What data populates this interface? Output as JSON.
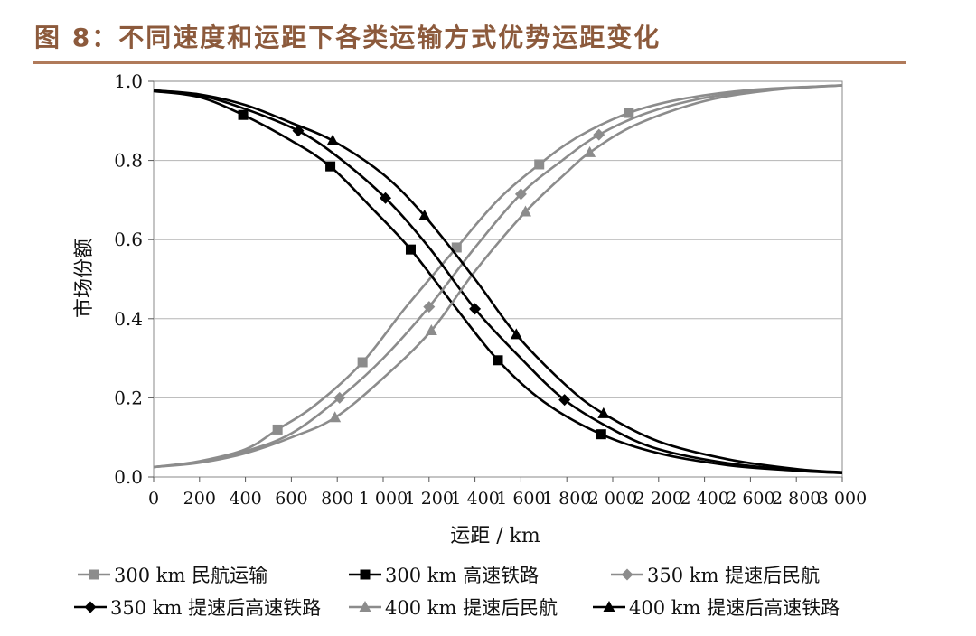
{
  "figure": {
    "title": "图 8：不同速度和运距下各类运输方式优势运距变化"
  },
  "chart_data": {
    "type": "line",
    "xlabel": "运距 / km",
    "ylabel": "市场份额",
    "xlim": [
      0,
      3000
    ],
    "ylim": [
      0,
      1.0
    ],
    "x_ticks": [
      "0",
      "200",
      "400",
      "600",
      "800",
      "1 000",
      "1 200",
      "1 400",
      "1 600",
      "1 800",
      "2 000",
      "2 200",
      "2 400",
      "2 600",
      "2 800",
      "3 000"
    ],
    "y_ticks": [
      "0.0",
      "0.2",
      "0.4",
      "0.6",
      "0.8",
      "1.0"
    ],
    "grid": "horizontal",
    "legend_position": "bottom",
    "series": [
      {
        "name": "300 km 民航运输",
        "color": "#8c8c8c",
        "marker": "square",
        "points": [
          [
            0,
            0.025
          ],
          [
            200,
            0.04
          ],
          [
            400,
            0.07
          ],
          [
            540,
            0.12
          ],
          [
            700,
            0.18
          ],
          [
            910,
            0.29
          ],
          [
            1100,
            0.43
          ],
          [
            1320,
            0.58
          ],
          [
            1500,
            0.7
          ],
          [
            1680,
            0.79
          ],
          [
            1850,
            0.86
          ],
          [
            2070,
            0.92
          ],
          [
            2300,
            0.955
          ],
          [
            2600,
            0.978
          ],
          [
            3000,
            0.99
          ]
        ],
        "marker_points": [
          [
            540,
            0.12
          ],
          [
            910,
            0.29
          ],
          [
            1320,
            0.58
          ],
          [
            1680,
            0.79
          ],
          [
            2070,
            0.92
          ]
        ]
      },
      {
        "name": "300 km 高速铁路",
        "color": "#000000",
        "marker": "square",
        "points": [
          [
            0,
            0.975
          ],
          [
            200,
            0.96
          ],
          [
            390,
            0.915
          ],
          [
            600,
            0.85
          ],
          [
            770,
            0.785
          ],
          [
            950,
            0.68
          ],
          [
            1120,
            0.575
          ],
          [
            1300,
            0.44
          ],
          [
            1500,
            0.295
          ],
          [
            1700,
            0.19
          ],
          [
            1950,
            0.108
          ],
          [
            2200,
            0.06
          ],
          [
            2500,
            0.03
          ],
          [
            2800,
            0.016
          ],
          [
            3000,
            0.01
          ]
        ],
        "marker_points": [
          [
            390,
            0.915
          ],
          [
            770,
            0.785
          ],
          [
            1120,
            0.575
          ],
          [
            1500,
            0.295
          ],
          [
            1950,
            0.108
          ]
        ]
      },
      {
        "name": "350 km 提速后民航",
        "color": "#8c8c8c",
        "marker": "diamond",
        "points": [
          [
            0,
            0.025
          ],
          [
            200,
            0.038
          ],
          [
            400,
            0.065
          ],
          [
            600,
            0.11
          ],
          [
            810,
            0.2
          ],
          [
            1000,
            0.3
          ],
          [
            1200,
            0.43
          ],
          [
            1400,
            0.58
          ],
          [
            1600,
            0.715
          ],
          [
            1780,
            0.8
          ],
          [
            1940,
            0.865
          ],
          [
            2150,
            0.92
          ],
          [
            2400,
            0.958
          ],
          [
            2700,
            0.98
          ],
          [
            3000,
            0.99
          ]
        ],
        "marker_points": [
          [
            810,
            0.2
          ],
          [
            1200,
            0.43
          ],
          [
            1600,
            0.715
          ],
          [
            1940,
            0.865
          ]
        ]
      },
      {
        "name": "350 km 提速后高速铁路",
        "color": "#000000",
        "marker": "diamond",
        "points": [
          [
            0,
            0.977
          ],
          [
            200,
            0.965
          ],
          [
            400,
            0.93
          ],
          [
            630,
            0.875
          ],
          [
            800,
            0.81
          ],
          [
            1010,
            0.705
          ],
          [
            1200,
            0.58
          ],
          [
            1400,
            0.425
          ],
          [
            1600,
            0.3
          ],
          [
            1790,
            0.195
          ],
          [
            2000,
            0.12
          ],
          [
            2200,
            0.07
          ],
          [
            2500,
            0.035
          ],
          [
            2800,
            0.017
          ],
          [
            3000,
            0.01
          ]
        ],
        "marker_points": [
          [
            630,
            0.875
          ],
          [
            1010,
            0.705
          ],
          [
            1400,
            0.425
          ],
          [
            1790,
            0.195
          ]
        ]
      },
      {
        "name": "400 km 提速后民航",
        "color": "#8c8c8c",
        "marker": "triangle",
        "points": [
          [
            0,
            0.025
          ],
          [
            200,
            0.036
          ],
          [
            400,
            0.06
          ],
          [
            600,
            0.1
          ],
          [
            790,
            0.15
          ],
          [
            1000,
            0.25
          ],
          [
            1210,
            0.37
          ],
          [
            1400,
            0.52
          ],
          [
            1620,
            0.67
          ],
          [
            1800,
            0.77
          ],
          [
            1900,
            0.82
          ],
          [
            2100,
            0.89
          ],
          [
            2400,
            0.95
          ],
          [
            2700,
            0.978
          ],
          [
            3000,
            0.99
          ]
        ],
        "marker_points": [
          [
            790,
            0.15
          ],
          [
            1210,
            0.37
          ],
          [
            1620,
            0.67
          ],
          [
            1900,
            0.82
          ]
        ]
      },
      {
        "name": "400 km 提速后高速铁路",
        "color": "#000000",
        "marker": "triangle",
        "points": [
          [
            0,
            0.977
          ],
          [
            200,
            0.967
          ],
          [
            400,
            0.94
          ],
          [
            600,
            0.895
          ],
          [
            780,
            0.85
          ],
          [
            1000,
            0.765
          ],
          [
            1180,
            0.66
          ],
          [
            1400,
            0.5
          ],
          [
            1580,
            0.36
          ],
          [
            1800,
            0.23
          ],
          [
            1960,
            0.16
          ],
          [
            2200,
            0.09
          ],
          [
            2500,
            0.045
          ],
          [
            2800,
            0.02
          ],
          [
            3000,
            0.012
          ]
        ],
        "marker_points": [
          [
            780,
            0.85
          ],
          [
            1180,
            0.66
          ],
          [
            1580,
            0.36
          ],
          [
            1960,
            0.16
          ]
        ]
      }
    ]
  }
}
